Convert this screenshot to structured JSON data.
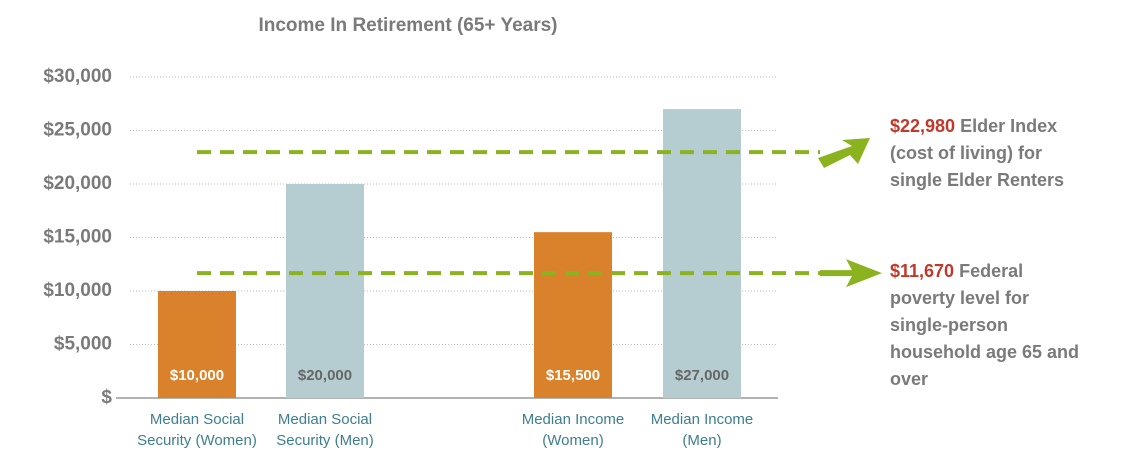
{
  "chart_data": {
    "type": "bar",
    "title": "Income In Retirement (65+ Years)",
    "categories": [
      "Median Social Security (Women)",
      "Median Social Security (Men)",
      "Median Income (Women)",
      "Median Income (Men)"
    ],
    "values": [
      10000,
      20000,
      15500,
      27000
    ],
    "value_labels": [
      "$10,000",
      "$20,000",
      "$15,500",
      "$27,000"
    ],
    "colors": [
      "#d9822b",
      "#b5cdd0",
      "#d9822b",
      "#b5cdd0"
    ],
    "ylim": [
      0,
      30000
    ],
    "yticks": [
      {
        "value": 0,
        "label": "$"
      },
      {
        "value": 5000,
        "label": "$5,000"
      },
      {
        "value": 10000,
        "label": "$10,000"
      },
      {
        "value": 15000,
        "label": "$15,000"
      },
      {
        "value": 20000,
        "label": "$20,000"
      },
      {
        "value": 25000,
        "label": "$25,000"
      },
      {
        "value": 30000,
        "label": "$30,000"
      }
    ],
    "grid": true,
    "reference_lines": [
      {
        "value": 22980,
        "value_label": "$22,980",
        "text": "Elder Index (cost of living) for single Elder Renters",
        "color": "#8ab31f"
      },
      {
        "value": 11670,
        "value_label": "$11,670",
        "text": "Federal poverty level for single-person household age 65 and over",
        "color": "#8ab31f"
      }
    ]
  }
}
